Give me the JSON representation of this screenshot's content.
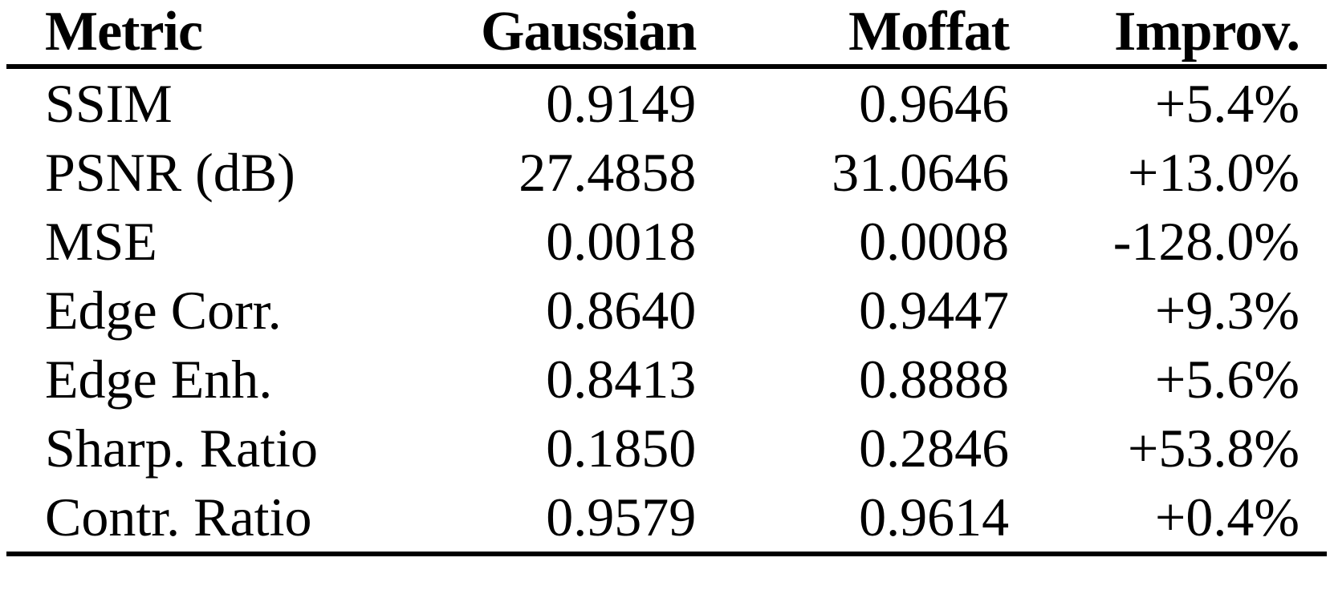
{
  "table": {
    "headers": [
      "Metric",
      "Gaussian",
      "Moffat",
      "Improv."
    ],
    "rows": [
      {
        "metric": "SSIM",
        "gaussian": "0.9149",
        "moffat": "0.9646",
        "improv": "+5.4%"
      },
      {
        "metric": "PSNR (dB)",
        "gaussian": "27.4858",
        "moffat": "31.0646",
        "improv": "+13.0%"
      },
      {
        "metric": "MSE",
        "gaussian": "0.0018",
        "moffat": "0.0008",
        "improv": "-128.0%"
      },
      {
        "metric": "Edge Corr.",
        "gaussian": "0.8640",
        "moffat": "0.9447",
        "improv": "+9.3%"
      },
      {
        "metric": "Edge Enh.",
        "gaussian": "0.8413",
        "moffat": "0.8888",
        "improv": "+5.6%"
      },
      {
        "metric": "Sharp. Ratio",
        "gaussian": "0.1850",
        "moffat": "0.2846",
        "improv": "+53.8%"
      },
      {
        "metric": "Contr. Ratio",
        "gaussian": "0.9579",
        "moffat": "0.9614",
        "improv": "+0.4%"
      }
    ],
    "colors": {
      "text": "#000000",
      "rule": "#000000",
      "background": "#ffffff"
    }
  }
}
